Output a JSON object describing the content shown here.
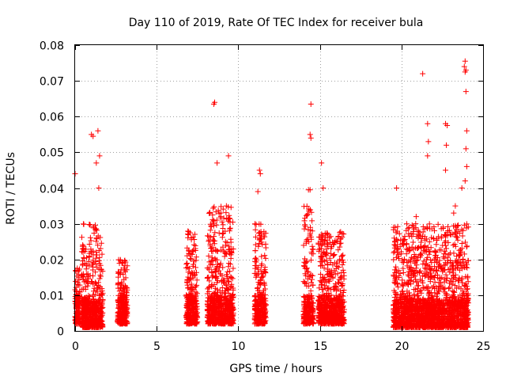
{
  "chart_data": {
    "type": "scatter",
    "title": "Day 110 of 2019, Rate Of TEC Index for receiver bula",
    "xlabel": "GPS time / hours",
    "ylabel": "ROTI / TECUs",
    "xlim": [
      0,
      25
    ],
    "ylim": [
      0,
      0.08
    ],
    "xticks": [
      "0",
      "5",
      "10",
      "15",
      "20",
      "25"
    ],
    "yticks": [
      "0",
      "0.01",
      "0.02",
      "0.03",
      "0.04",
      "0.05",
      "0.06",
      "0.07",
      "0.08"
    ],
    "grid": true,
    "marker": "+",
    "color": "#ff0000",
    "clusters": [
      {
        "x": [
          -0.1,
          0.3
        ],
        "y": [
          0.002,
          0.018
        ]
      },
      {
        "x": [
          0.4,
          1.7
        ],
        "y": [
          0.001,
          0.03
        ]
      },
      {
        "x": [
          2.6,
          3.2
        ],
        "y": [
          0.002,
          0.02
        ]
      },
      {
        "x": [
          6.8,
          7.5
        ],
        "y": [
          0.002,
          0.028
        ]
      },
      {
        "x": [
          8.1,
          9.7
        ],
        "y": [
          0.002,
          0.035
        ]
      },
      {
        "x": [
          11.0,
          11.7
        ],
        "y": [
          0.002,
          0.03
        ]
      },
      {
        "x": [
          14.0,
          14.6
        ],
        "y": [
          0.002,
          0.035
        ]
      },
      {
        "x": [
          14.9,
          16.5
        ],
        "y": [
          0.002,
          0.028
        ]
      },
      {
        "x": [
          19.5,
          24.1
        ],
        "y": [
          0.001,
          0.03
        ]
      }
    ],
    "points": [
      [
        0.0,
        0.044
      ],
      [
        1.0,
        0.055
      ],
      [
        1.1,
        0.0545
      ],
      [
        1.4,
        0.056
      ],
      [
        1.5,
        0.049
      ],
      [
        1.45,
        0.04
      ],
      [
        1.3,
        0.047
      ],
      [
        8.5,
        0.0635
      ],
      [
        8.55,
        0.064
      ],
      [
        8.7,
        0.047
      ],
      [
        9.4,
        0.049
      ],
      [
        11.3,
        0.045
      ],
      [
        11.35,
        0.044
      ],
      [
        11.2,
        0.039
      ],
      [
        14.45,
        0.0635
      ],
      [
        14.4,
        0.055
      ],
      [
        14.45,
        0.054
      ],
      [
        14.3,
        0.0395
      ],
      [
        14.4,
        0.0395
      ],
      [
        15.1,
        0.047
      ],
      [
        15.2,
        0.04
      ],
      [
        19.7,
        0.04
      ],
      [
        20.9,
        0.032
      ],
      [
        21.3,
        0.072
      ],
      [
        21.6,
        0.058
      ],
      [
        21.65,
        0.053
      ],
      [
        21.6,
        0.049
      ],
      [
        22.7,
        0.058
      ],
      [
        22.8,
        0.0575
      ],
      [
        22.75,
        0.052
      ],
      [
        22.7,
        0.045
      ],
      [
        23.9,
        0.0755
      ],
      [
        23.85,
        0.074
      ],
      [
        23.95,
        0.073
      ],
      [
        23.9,
        0.0725
      ],
      [
        23.95,
        0.067
      ],
      [
        24.0,
        0.056
      ],
      [
        23.95,
        0.051
      ],
      [
        24.0,
        0.046
      ],
      [
        23.9,
        0.042
      ],
      [
        23.7,
        0.04
      ],
      [
        23.3,
        0.035
      ],
      [
        23.2,
        0.033
      ]
    ]
  }
}
